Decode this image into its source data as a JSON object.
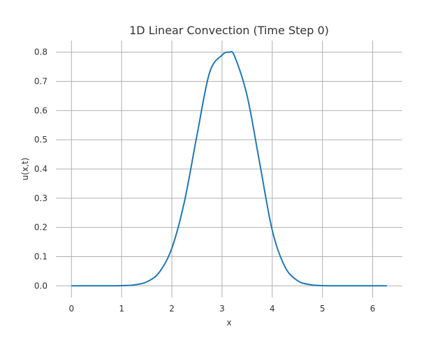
{
  "chart_data": {
    "type": "line",
    "title": "1D Linear Convection (Time Step 0)",
    "xlabel": "x",
    "ylabel": "u(x,t)",
    "xlim": [
      -0.31,
      6.59
    ],
    "ylim": [
      -0.04,
      0.84
    ],
    "x_ticks": [
      "0",
      "1",
      "2",
      "3",
      "4",
      "5",
      "6"
    ],
    "x_tick_values": [
      0,
      1,
      2,
      3,
      4,
      5,
      6
    ],
    "y_ticks": [
      "0.0",
      "0.1",
      "0.2",
      "0.3",
      "0.4",
      "0.5",
      "0.6",
      "0.7",
      "0.8"
    ],
    "y_tick_values": [
      0.0,
      0.1,
      0.2,
      0.3,
      0.4,
      0.5,
      0.6,
      0.7,
      0.8
    ],
    "grid": true,
    "series": [
      {
        "color": "#1f77b4",
        "x": [
          0,
          0.25,
          0.5,
          0.75,
          1.0,
          1.25,
          1.5,
          1.75,
          2.0,
          2.25,
          2.5,
          2.75,
          3.0,
          3.1416,
          3.25,
          3.5,
          3.75,
          4.0,
          4.25,
          4.5,
          4.75,
          5.0,
          5.25,
          5.5,
          5.75,
          6.0,
          6.2832
        ],
        "y": [
          0.0,
          0.0,
          0.0,
          0.0,
          0.0006,
          0.0032,
          0.0135,
          0.0464,
          0.1287,
          0.2879,
          0.5152,
          0.7292,
          0.79,
          0.8,
          0.786,
          0.65,
          0.42,
          0.19,
          0.066,
          0.018,
          0.004,
          0.0007,
          0.0001,
          0.0,
          0.0,
          0.0,
          0.0
        ]
      }
    ]
  }
}
